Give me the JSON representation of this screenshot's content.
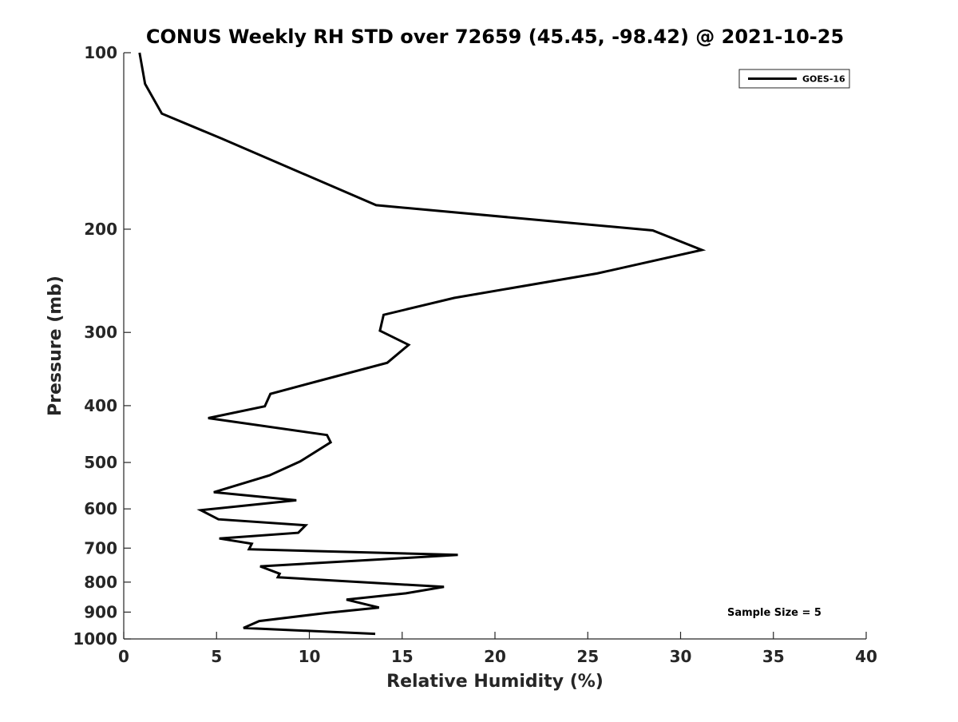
{
  "chart_data": {
    "type": "line",
    "title": "CONUS Weekly RH STD over 72659 (45.45, -98.42) @ 2021-10-25",
    "xlabel": "Relative Humidity (%)",
    "ylabel": "Pressure (mb)",
    "xlim": [
      0,
      40
    ],
    "ylim": [
      100,
      1000
    ],
    "yscale": "log",
    "y_reversed": true,
    "grid": false,
    "x_ticks": [
      0,
      5,
      10,
      15,
      20,
      25,
      30,
      35,
      40
    ],
    "x_tick_labels": [
      "0",
      "5",
      "10",
      "15",
      "20",
      "25",
      "30",
      "35",
      "40"
    ],
    "y_ticks": [
      100,
      200,
      300,
      400,
      500,
      600,
      700,
      800,
      900,
      1000
    ],
    "y_tick_labels": [
      "100",
      "200",
      "300",
      "400",
      "500",
      "600",
      "700",
      "800",
      "900",
      "1000"
    ],
    "legend": {
      "placement": "top-right",
      "entries": [
        "GOES-16"
      ]
    },
    "annotation": "Sample Size = 5",
    "series": [
      {
        "name": "GOES-16",
        "color": "#000000",
        "x": [
          0.85,
          1.15,
          2.05,
          5.25,
          13.6,
          28.5,
          31.15,
          25.5,
          17.8,
          14.0,
          13.8,
          15.35,
          14.2,
          10.5,
          7.9,
          7.6,
          4.55,
          10.95,
          11.15,
          9.5,
          7.85,
          4.85,
          9.3,
          4.15,
          5.1,
          9.8,
          9.4,
          5.15,
          6.9,
          6.75,
          18.0,
          7.35,
          8.4,
          8.3,
          17.25,
          15.2,
          12.0,
          13.75,
          10.9,
          7.3,
          6.45,
          13.55
        ],
        "y": [
          100,
          113,
          127,
          140,
          182,
          201,
          217,
          238,
          262,
          280,
          298,
          315,
          338,
          363,
          382,
          401,
          420,
          449,
          462,
          498,
          526,
          562,
          580,
          603,
          625,
          640,
          659,
          674,
          688,
          703,
          719,
          752,
          774,
          785,
          815,
          836,
          857,
          884,
          903,
          932,
          958,
          980
        ]
      }
    ]
  }
}
